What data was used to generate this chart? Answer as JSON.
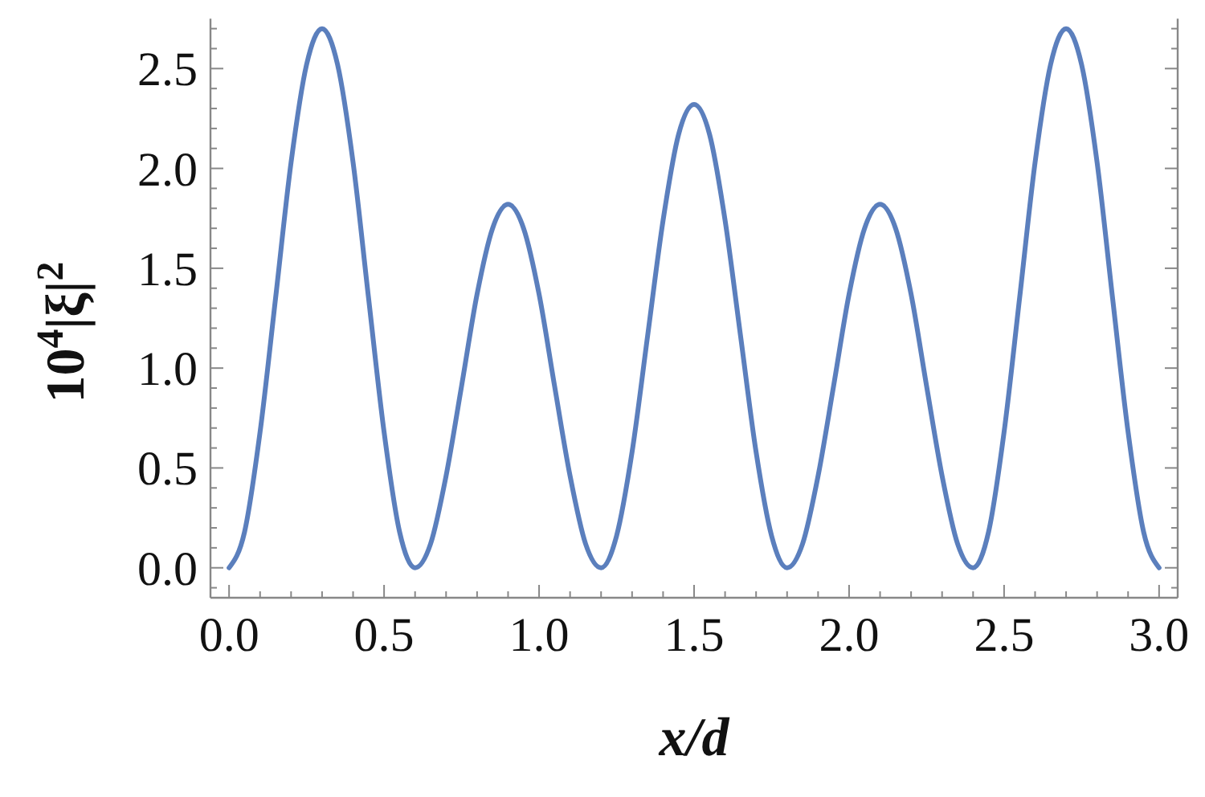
{
  "chart_data": {
    "type": "line",
    "xlabel": "x/d",
    "ylabel": "10$^{4}$|ξ|$^{2}$",
    "x": [
      0,
      0.05,
      0.1,
      0.15,
      0.2,
      0.25,
      0.3,
      0.35,
      0.4,
      0.45,
      0.5,
      0.55,
      0.6,
      0.65,
      0.7,
      0.75,
      0.8,
      0.85,
      0.9,
      0.95,
      1.0,
      1.05,
      1.1,
      1.15,
      1.2,
      1.25,
      1.3,
      1.35,
      1.4,
      1.45,
      1.5,
      1.55,
      1.6,
      1.65,
      1.7,
      1.75,
      1.8,
      1.85,
      1.9,
      1.95,
      2.0,
      2.05,
      2.1,
      2.15,
      2.2,
      2.25,
      2.3,
      2.35,
      2.4,
      2.45,
      2.5,
      2.55,
      2.6,
      2.65,
      2.7,
      2.75,
      2.8,
      2.85,
      2.9,
      2.95,
      3.0
    ],
    "series": [
      {
        "color": "#5b7fbd",
        "values": [
          0,
          0.18,
          0.68,
          1.35,
          2.03,
          2.52,
          2.7,
          2.52,
          2.03,
          1.35,
          0.68,
          0.18,
          0,
          0.12,
          0.46,
          0.91,
          1.37,
          1.7,
          1.82,
          1.7,
          1.37,
          0.91,
          0.46,
          0.12,
          0,
          0.16,
          0.58,
          1.16,
          1.74,
          2.17,
          2.32,
          2.17,
          1.74,
          1.16,
          0.58,
          0.16,
          0,
          0.12,
          0.46,
          0.91,
          1.37,
          1.7,
          1.82,
          1.7,
          1.37,
          0.91,
          0.46,
          0.12,
          0,
          0.18,
          0.68,
          1.35,
          2.03,
          2.52,
          2.7,
          2.52,
          2.03,
          1.35,
          0.68,
          0.18,
          0
        ]
      }
    ],
    "xlim": [
      -0.06,
      3.06
    ],
    "ylim": [
      -0.15,
      2.75
    ],
    "xticks": [
      {
        "value": 0,
        "label": "0.0"
      },
      {
        "value": 0.1,
        "label": null
      },
      {
        "value": 0.2,
        "label": null
      },
      {
        "value": 0.3,
        "label": null
      },
      {
        "value": 0.4,
        "label": null
      },
      {
        "value": 0.5,
        "label": "0.5"
      },
      {
        "value": 0.6,
        "label": null
      },
      {
        "value": 0.7,
        "label": null
      },
      {
        "value": 0.8,
        "label": null
      },
      {
        "value": 0.9,
        "label": null
      },
      {
        "value": 1,
        "label": "1.0"
      },
      {
        "value": 1.1,
        "label": null
      },
      {
        "value": 1.2,
        "label": null
      },
      {
        "value": 1.3,
        "label": null
      },
      {
        "value": 1.4,
        "label": null
      },
      {
        "value": 1.5,
        "label": "1.5"
      },
      {
        "value": 1.6,
        "label": null
      },
      {
        "value": 1.7,
        "label": null
      },
      {
        "value": 1.8,
        "label": null
      },
      {
        "value": 1.9,
        "label": null
      },
      {
        "value": 2,
        "label": "2.0"
      },
      {
        "value": 2.1,
        "label": null
      },
      {
        "value": 2.2,
        "label": null
      },
      {
        "value": 2.3,
        "label": null
      },
      {
        "value": 2.4,
        "label": null
      },
      {
        "value": 2.5,
        "label": "2.5"
      },
      {
        "value": 2.6,
        "label": null
      },
      {
        "value": 2.7,
        "label": null
      },
      {
        "value": 2.8,
        "label": null
      },
      {
        "value": 2.9,
        "label": null
      },
      {
        "value": 3,
        "label": "3.0"
      }
    ],
    "yticks": [
      {
        "value": -0.1,
        "label": null
      },
      {
        "value": 0,
        "label": "0.0"
      },
      {
        "value": 0.1,
        "label": null
      },
      {
        "value": 0.2,
        "label": null
      },
      {
        "value": 0.3,
        "label": null
      },
      {
        "value": 0.4,
        "label": null
      },
      {
        "value": 0.5,
        "label": "0.5"
      },
      {
        "value": 0.6,
        "label": null
      },
      {
        "value": 0.7,
        "label": null
      },
      {
        "value": 0.8,
        "label": null
      },
      {
        "value": 0.9,
        "label": null
      },
      {
        "value": 1,
        "label": "1.0"
      },
      {
        "value": 1.1,
        "label": null
      },
      {
        "value": 1.2,
        "label": null
      },
      {
        "value": 1.3,
        "label": null
      },
      {
        "value": 1.4,
        "label": null
      },
      {
        "value": 1.5,
        "label": "1.5"
      },
      {
        "value": 1.6,
        "label": null
      },
      {
        "value": 1.7,
        "label": null
      },
      {
        "value": 1.8,
        "label": null
      },
      {
        "value": 1.9,
        "label": null
      },
      {
        "value": 2,
        "label": "2.0"
      },
      {
        "value": 2.1,
        "label": null
      },
      {
        "value": 2.2,
        "label": null
      },
      {
        "value": 2.3,
        "label": null
      },
      {
        "value": 2.4,
        "label": null
      },
      {
        "value": 2.5,
        "label": "2.5"
      },
      {
        "value": 2.6,
        "label": null
      },
      {
        "value": 2.7,
        "label": null
      }
    ],
    "marker": "none",
    "line_style": "solid",
    "grid": false
  }
}
